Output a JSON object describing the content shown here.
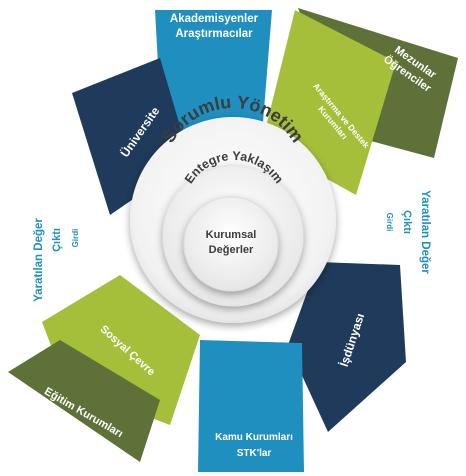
{
  "colors": {
    "teal": "#1f8fc0",
    "navy": "#1f3a5a",
    "lime": "#a5bf3a",
    "olive": "#5e7138",
    "white": "#ffffff",
    "center_text": "#3d3d3d",
    "side_text": "#1f8fc0"
  },
  "segments": {
    "akademisyenler": {
      "line1": "Akademisyenler",
      "line2": "Araştırmacılar"
    },
    "mezunlar": {
      "line1": "Mezunlar",
      "line2": "Öğrenciler"
    },
    "arastirma": {
      "line1": "Araştırma ve Destek",
      "line2": "Kurumları"
    },
    "universite": {
      "label": "Üniversite"
    },
    "isdunyasi": {
      "label": "İşdünyası"
    },
    "kamu": {
      "line1": "Kamu Kurumları",
      "line2": "STK'lar"
    },
    "sosyal": {
      "label": "Sosyal Çevre"
    },
    "egitim": {
      "label": "Eğitim Kurumları"
    }
  },
  "center": {
    "outer_title": "Sorumlu Yönetim",
    "middle_title": "Entegre Yaklaşım",
    "inner_line1": "Kurumsal",
    "inner_line2": "Değerler"
  },
  "side_left": {
    "title": "Yaratılan Değer",
    "sub1": "Çıktı",
    "sub2": "Girdi"
  },
  "side_right": {
    "title": "Yaratılan Değer",
    "sub1": "Çıktı",
    "sub2": "Girdi"
  }
}
